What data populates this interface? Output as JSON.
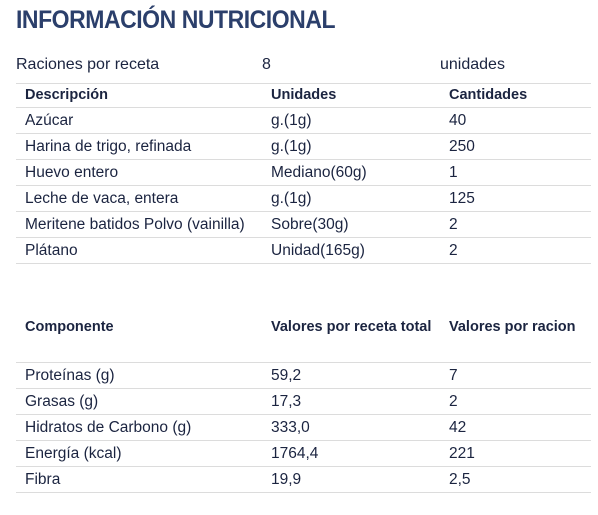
{
  "title": "INFORMACIÓN NUTRICIONAL",
  "rations": {
    "label": "Raciones por receta",
    "value": "8",
    "unit": "unidades"
  },
  "ingredients": {
    "headers": [
      "Descripción",
      "Unidades",
      "Cantidades"
    ],
    "rows": [
      [
        "Azúcar",
        "g.(1g)",
        "40"
      ],
      [
        "Harina de trigo, refinada",
        "g.(1g)",
        "250"
      ],
      [
        "Huevo entero",
        "Mediano(60g)",
        "1"
      ],
      [
        "Leche de vaca, entera",
        "g.(1g)",
        "125"
      ],
      [
        "Meritene batidos Polvo (vainilla)",
        "Sobre(30g)",
        "2"
      ],
      [
        "Plátano",
        "Unidad(165g)",
        "2"
      ]
    ]
  },
  "nutrients": {
    "headers": [
      "Componente",
      "Valores por receta total",
      "Valores por racion"
    ],
    "rows": [
      [
        "Proteínas (g)",
        "59,2",
        "7"
      ],
      [
        "Grasas (g)",
        "17,3",
        "2"
      ],
      [
        "Hidratos de Carbono (g)",
        "333,0",
        "42"
      ],
      [
        "Energía (kcal)",
        "1764,4",
        "221"
      ],
      [
        "Fibra",
        "19,9",
        "2,5"
      ]
    ]
  }
}
